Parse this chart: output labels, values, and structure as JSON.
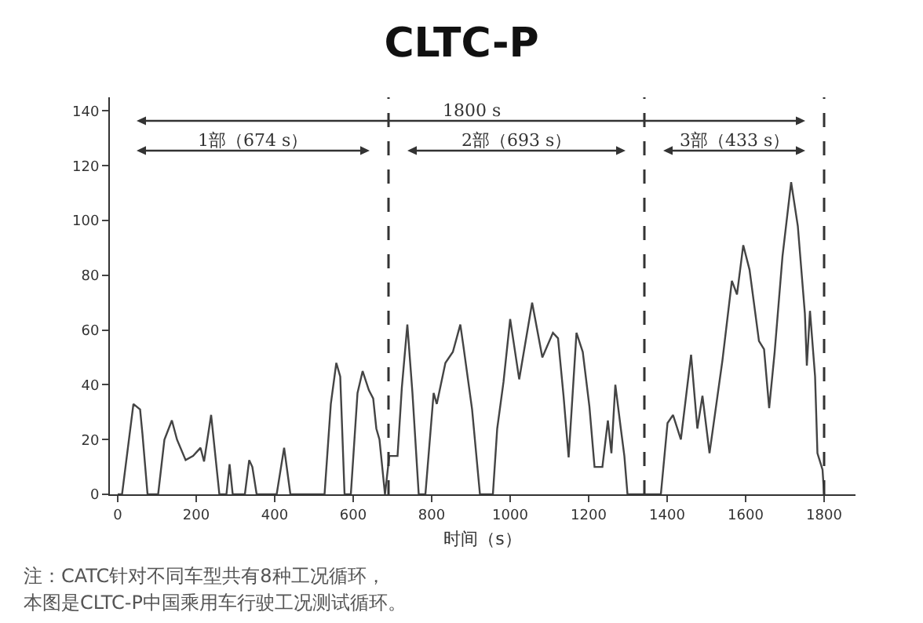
{
  "chart_data": {
    "type": "line",
    "title": "CLTC-P",
    "xlabel": "时间（s）",
    "x": [
      0,
      11,
      40,
      57,
      63,
      76,
      103,
      119,
      138,
      151,
      173,
      192,
      211,
      220,
      238,
      259,
      277,
      285,
      293,
      324,
      335,
      343,
      354,
      405,
      424,
      440,
      527,
      543,
      557,
      567,
      578,
      594,
      611,
      624,
      640,
      651,
      659,
      667,
      681,
      692,
      713,
      724,
      738,
      751,
      767,
      784,
      805,
      813,
      835,
      854,
      873,
      881,
      903,
      923,
      956,
      967,
      983,
      1000,
      1023,
      1056,
      1082,
      1109,
      1122,
      1136,
      1149,
      1169,
      1185,
      1202,
      1215,
      1235,
      1249,
      1258,
      1268,
      1282,
      1291,
      1299,
      1384,
      1401,
      1415,
      1435,
      1461,
      1477,
      1490,
      1508,
      1541,
      1565,
      1578,
      1594,
      1610,
      1634,
      1647,
      1660,
      1674,
      1694,
      1716,
      1733,
      1751,
      1756,
      1764,
      1777,
      1783,
      1796,
      1800
    ],
    "series": [
      {
        "color": "#444444",
        "values": [
          0,
          0,
          33,
          31,
          22,
          0,
          0,
          20,
          27,
          20,
          12.5,
          14,
          17,
          12,
          29,
          0,
          0,
          11,
          0,
          0,
          12.5,
          10,
          0,
          0,
          17,
          0,
          0,
          33,
          48,
          43,
          0,
          0,
          37,
          45,
          38,
          35,
          24,
          20,
          0,
          14,
          14,
          39,
          62,
          37,
          0,
          0,
          37,
          33,
          48,
          52,
          62,
          54,
          31,
          0,
          0,
          24,
          41,
          64,
          42,
          70,
          50,
          59,
          57,
          36,
          13.5,
          59,
          52,
          32,
          10,
          10,
          27,
          15,
          40,
          24,
          14,
          0,
          0,
          26,
          29,
          20,
          51,
          24,
          36,
          15,
          49,
          78,
          73,
          91,
          82,
          56,
          53,
          31.5,
          52,
          87,
          114,
          98,
          66,
          47,
          67,
          43,
          15,
          9,
          0
        ]
      }
    ],
    "xlim": [
      -20,
      1880
    ],
    "ylim": [
      0,
      145
    ],
    "xticks": [
      0,
      200,
      400,
      600,
      800,
      1000,
      1200,
      1400,
      1600,
      1800
    ],
    "yticks": [
      0,
      20,
      40,
      60,
      80,
      100,
      120,
      140
    ],
    "grid": false,
    "marker": "none",
    "line_style": "solid",
    "ref_lines": [
      {
        "axis": "x",
        "value": 690,
        "line_style": "dashed"
      },
      {
        "axis": "x",
        "value": 1342,
        "line_style": "dashed"
      },
      {
        "axis": "x",
        "value": 1800,
        "line_style": "dashed"
      }
    ],
    "annotations": [
      "1800 s",
      "1部（674 s）",
      "2部（693 s）",
      "3部（433 s）",
      "注：CATC针对不同车型共有8种工况循环，",
      "本图是CLTC-P中国乘用车行驶工况测试循环。"
    ]
  }
}
